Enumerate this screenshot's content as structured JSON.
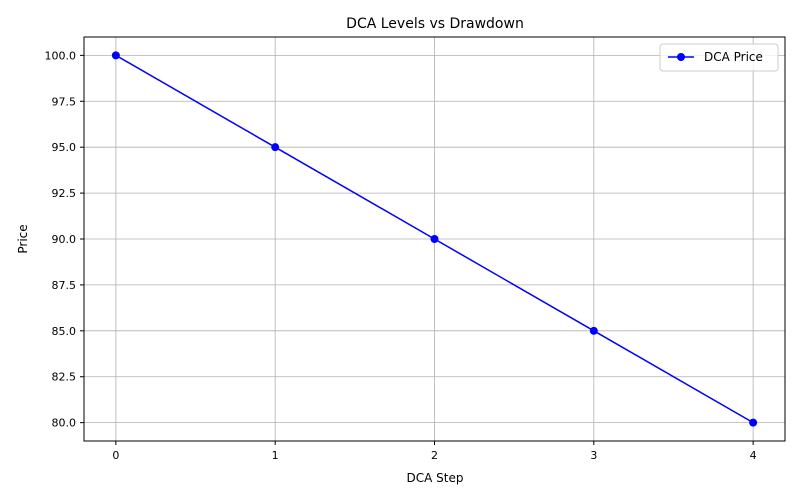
{
  "chart_data": {
    "type": "line",
    "title": "DCA Levels vs Drawdown",
    "xlabel": "DCA Step",
    "ylabel": "Price",
    "x": [
      0,
      1,
      2,
      3,
      4
    ],
    "series": [
      {
        "name": "DCA Price",
        "values": [
          100.0,
          95.0,
          90.0,
          85.0,
          80.0
        ],
        "color": "#0000ff",
        "marker": "circle"
      }
    ],
    "xlim": [
      -0.2,
      4.2
    ],
    "ylim": [
      79.0,
      101.0
    ],
    "xticks": [
      0,
      1,
      2,
      3,
      4
    ],
    "xtick_labels": [
      "0",
      "1",
      "2",
      "3",
      "4"
    ],
    "yticks": [
      80.0,
      82.5,
      85.0,
      87.5,
      90.0,
      92.5,
      95.0,
      97.5,
      100.0
    ],
    "ytick_labels": [
      "80.0",
      "82.5",
      "85.0",
      "87.5",
      "90.0",
      "92.5",
      "95.0",
      "97.5",
      "100.0"
    ],
    "grid": true,
    "legend_position": "top-right"
  }
}
